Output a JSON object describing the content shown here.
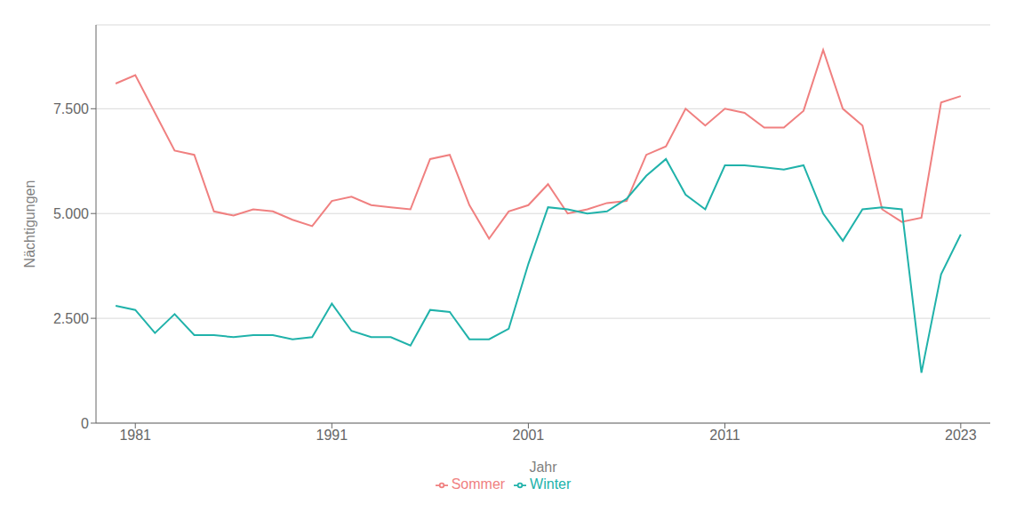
{
  "chart_data": {
    "type": "line",
    "x": [
      1980,
      1981,
      1982,
      1983,
      1984,
      1985,
      1986,
      1987,
      1988,
      1989,
      1990,
      1991,
      1992,
      1993,
      1994,
      1995,
      1996,
      1997,
      1998,
      1999,
      2000,
      2001,
      2002,
      2003,
      2004,
      2005,
      2006,
      2007,
      2008,
      2009,
      2010,
      2011,
      2012,
      2013,
      2014,
      2015,
      2016,
      2017,
      2018,
      2019,
      2020,
      2021,
      2022,
      2023
    ],
    "series": [
      {
        "name": "Sommer",
        "color": "#F08080",
        "values": [
          8100,
          8300,
          7400,
          6500,
          6400,
          5050,
          4950,
          5100,
          5050,
          4850,
          4700,
          5300,
          5400,
          5200,
          5150,
          5100,
          6300,
          6400,
          5200,
          4400,
          5050,
          5200,
          5700,
          5000,
          5100,
          5250,
          5300,
          6400,
          6600,
          7500,
          7100,
          7500,
          7400,
          7050,
          7050,
          7450,
          8900,
          7500,
          7100,
          5100,
          4800,
          4900,
          7650,
          7800
        ]
      },
      {
        "name": "Winter",
        "color": "#20B2AA",
        "values": [
          2800,
          2700,
          2150,
          2600,
          2100,
          2100,
          2050,
          2100,
          2100,
          2000,
          2050,
          2850,
          2200,
          2050,
          2050,
          1850,
          2700,
          2650,
          2000,
          2000,
          2250,
          3800,
          5150,
          5100,
          5000,
          5050,
          5350,
          5900,
          6300,
          5450,
          5100,
          6150,
          6150,
          6100,
          6050,
          6150,
          5000,
          4350,
          5100,
          5150,
          5100,
          1200,
          3550,
          4500
        ]
      }
    ],
    "xlabel": "Jahr",
    "ylabel": "Nächtigungen",
    "xlim": [
      1979,
      2024.5
    ],
    "xticks": [
      1981,
      1991,
      2001,
      2011,
      2023
    ],
    "ylim": [
      0,
      9500
    ],
    "yticks": [
      0,
      {
        "value": 2500,
        "label": "2.500"
      },
      {
        "value": 5000,
        "label": "5.000"
      },
      {
        "value": 7500,
        "label": "7.500"
      }
    ],
    "grid": true,
    "legend": "bottom"
  }
}
